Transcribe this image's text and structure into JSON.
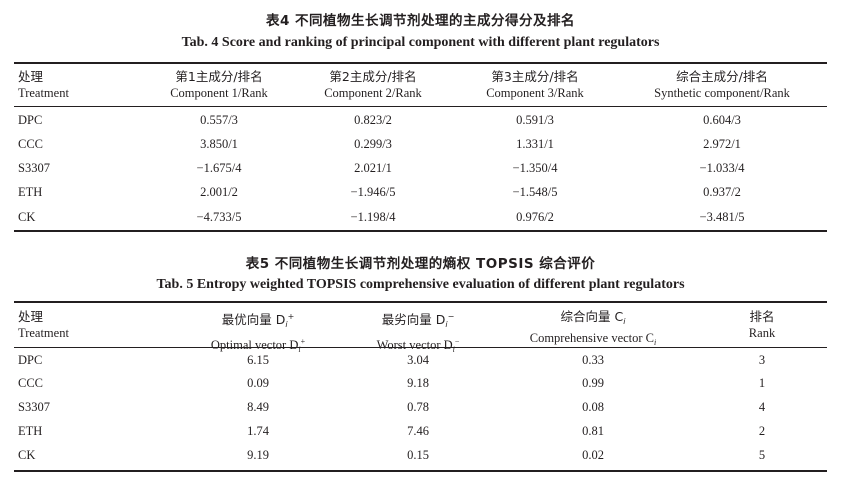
{
  "table4": {
    "caption_cn": "表4  不同植物生长调节剂处理的主成分得分及排名",
    "caption_en": "Tab. 4  Score and ranking of principal component with different plant regulators",
    "headers": [
      {
        "cn": "处理",
        "en": "Treatment"
      },
      {
        "cn": "第1主成分/排名",
        "en": "Component 1/Rank"
      },
      {
        "cn": "第2主成分/排名",
        "en": "Component 2/Rank"
      },
      {
        "cn": "第3主成分/排名",
        "en": "Component 3/Rank"
      },
      {
        "cn": "综合主成分/排名",
        "en": "Synthetic component/Rank"
      }
    ],
    "rows": [
      [
        "DPC",
        "0.557/3",
        "0.823/2",
        "0.591/3",
        "0.604/3"
      ],
      [
        "CCC",
        "3.850/1",
        "0.299/3",
        "1.331/1",
        "2.972/1"
      ],
      [
        "S3307",
        "−1.675/4",
        "2.021/1",
        "−1.350/4",
        "−1.033/4"
      ],
      [
        "ETH",
        "2.001/2",
        "−1.946/5",
        "−1.548/5",
        "0.937/2"
      ],
      [
        "CK",
        "−4.733/5",
        "−1.198/4",
        "0.976/2",
        "−3.481/5"
      ]
    ]
  },
  "table5": {
    "caption_cn": "表5  不同植物生长调节剂处理的熵权 TOPSIS 综合评价",
    "caption_en": "Tab. 5  Entropy weighted TOPSIS comprehensive evaluation of different plant regulators",
    "headers": [
      {
        "cn": "处理",
        "en": "Treatment"
      },
      {
        "cn": "最优向量 D",
        "cn_sub": "i",
        "cn_sup": "+",
        "en": "Optimal vector D",
        "en_sub": "i",
        "en_sup": "+"
      },
      {
        "cn": "最劣向量 D",
        "cn_sub": "i",
        "cn_sup": "−",
        "en": "Worst vector D",
        "en_sub": "i",
        "en_sup": "−"
      },
      {
        "cn": "综合向量 C",
        "cn_sub": "i",
        "cn_sup": "",
        "en": "Comprehensive vector C",
        "en_sub": "i",
        "en_sup": ""
      },
      {
        "cn": "排名",
        "en": "Rank"
      }
    ],
    "rows": [
      [
        "DPC",
        "6.15",
        "3.04",
        "0.33",
        "3"
      ],
      [
        "CCC",
        "0.09",
        "9.18",
        "0.99",
        "1"
      ],
      [
        "S3307",
        "8.49",
        "0.78",
        "0.08",
        "4"
      ],
      [
        "ETH",
        "1.74",
        "7.46",
        "0.81",
        "2"
      ],
      [
        "CK",
        "9.19",
        "0.15",
        "0.02",
        "5"
      ]
    ]
  }
}
